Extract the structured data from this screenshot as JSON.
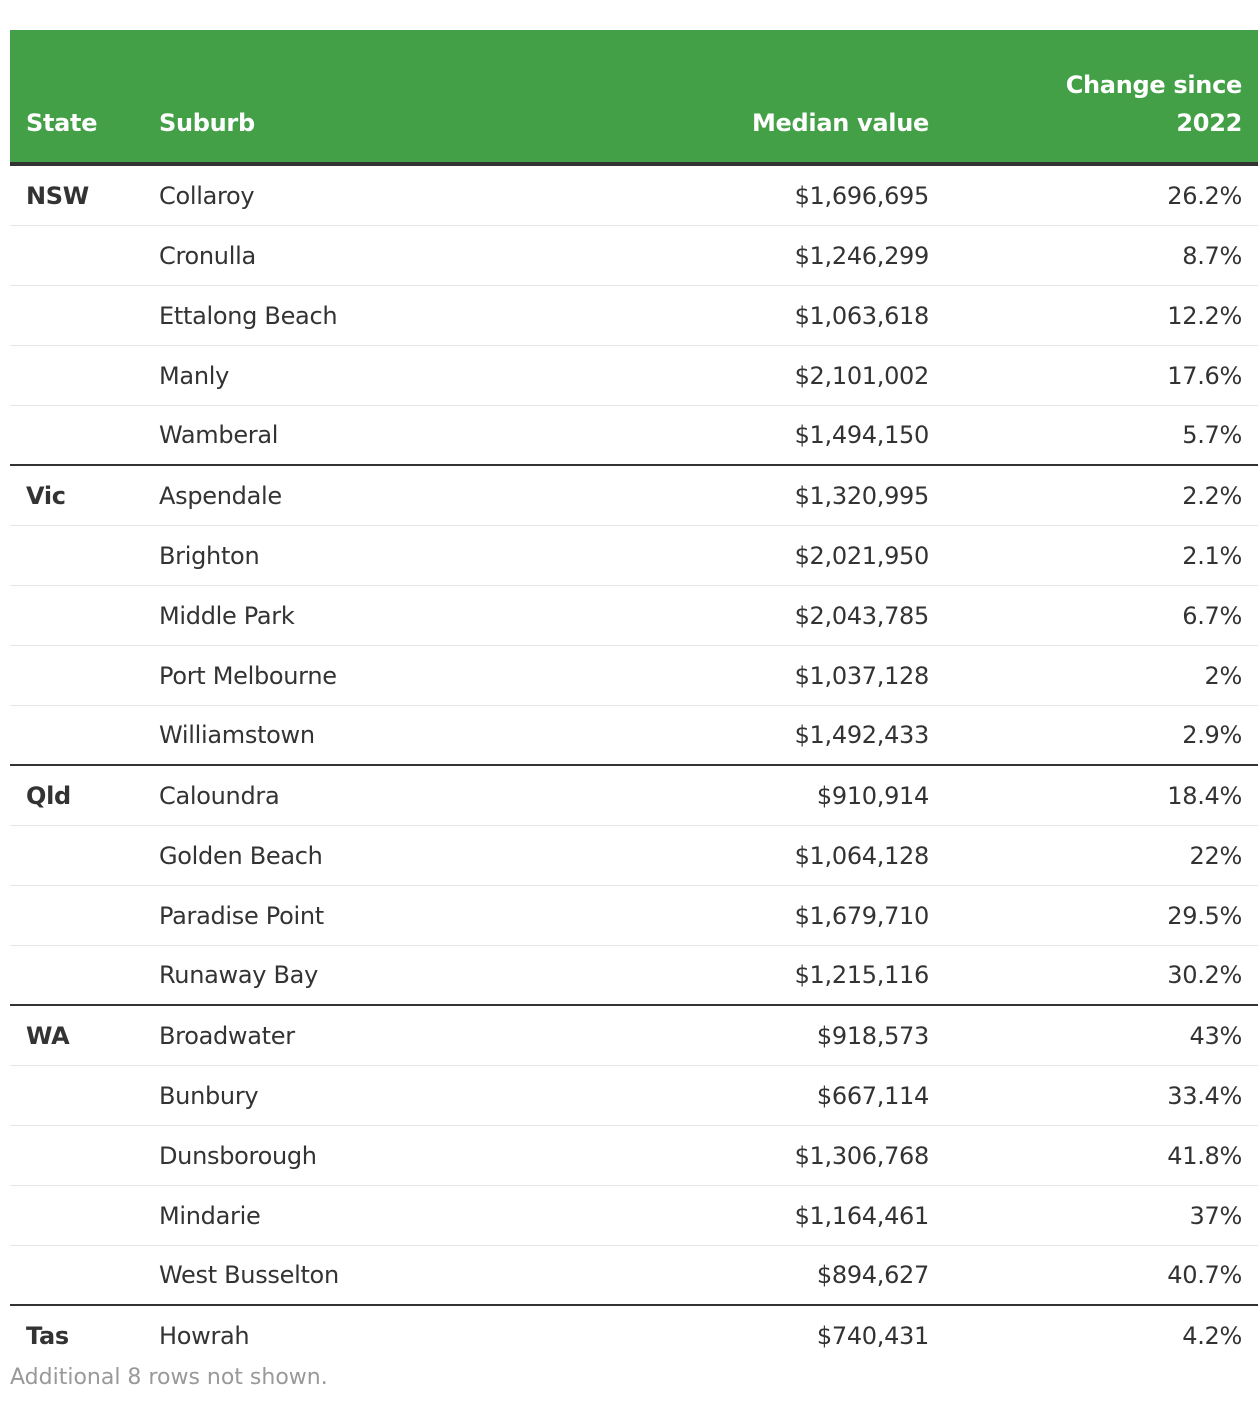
{
  "chart_data": {
    "type": "table",
    "columns": [
      "State",
      "Suburb",
      "Median value",
      "Change since 2022"
    ],
    "rows": [
      [
        "NSW",
        "Collaroy",
        "$1,696,695",
        "26.2%"
      ],
      [
        "",
        "Cronulla",
        "$1,246,299",
        "8.7%"
      ],
      [
        "",
        "Ettalong Beach",
        "$1,063,618",
        "12.2%"
      ],
      [
        "",
        "Manly",
        "$2,101,002",
        "17.6%"
      ],
      [
        "",
        "Wamberal",
        "$1,494,150",
        "5.7%"
      ],
      [
        "Vic",
        "Aspendale",
        "$1,320,995",
        "2.2%"
      ],
      [
        "",
        "Brighton",
        "$2,021,950",
        "2.1%"
      ],
      [
        "",
        "Middle Park",
        "$2,043,785",
        "6.7%"
      ],
      [
        "",
        "Port Melbourne",
        "$1,037,128",
        "2%"
      ],
      [
        "",
        "Williamstown",
        "$1,492,433",
        "2.9%"
      ],
      [
        "Qld",
        "Caloundra",
        "$910,914",
        "18.4%"
      ],
      [
        "",
        "Golden Beach",
        "$1,064,128",
        "22%"
      ],
      [
        "",
        "Paradise Point",
        "$1,679,710",
        "29.5%"
      ],
      [
        "",
        "Runaway Bay",
        "$1,215,116",
        "30.2%"
      ],
      [
        "WA",
        "Broadwater",
        "$918,573",
        "43%"
      ],
      [
        "",
        "Bunbury",
        "$667,114",
        "33.4%"
      ],
      [
        "",
        "Dunsborough",
        "$1,306,768",
        "41.8%"
      ],
      [
        "",
        "Mindarie",
        "$1,164,461",
        "37%"
      ],
      [
        "",
        "West Busselton",
        "$894,627",
        "40.7%"
      ],
      [
        "Tas",
        "Howrah",
        "$740,431",
        "4.2%"
      ]
    ],
    "group_end_rows": [
      4,
      9,
      13,
      18
    ],
    "footer": "Additional 8 rows not shown.",
    "header_color": "#43a047"
  }
}
